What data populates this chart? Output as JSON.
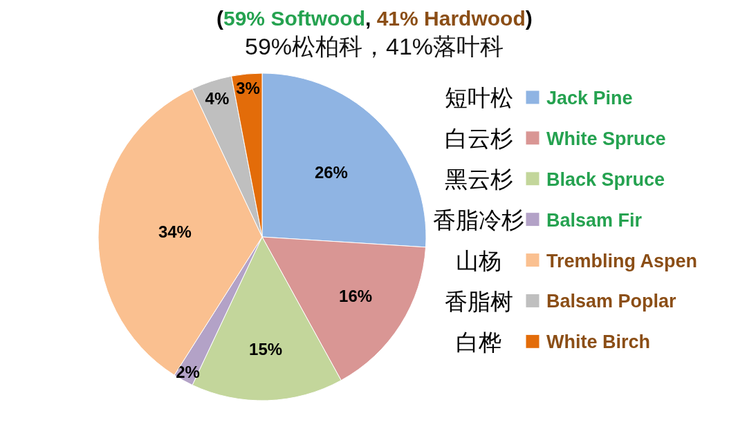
{
  "chart_data": {
    "type": "pie",
    "title": "(59% Softwood, 41% Hardwood)",
    "subtitle": "59%松柏科，41%落叶科",
    "categories": [
      "Jack Pine",
      "White Spruce",
      "Black Spruce",
      "Balsam Fir",
      "Trembling Aspen",
      "Balsam Poplar",
      "White Birch"
    ],
    "values": [
      26,
      16,
      15,
      2,
      34,
      4,
      3
    ],
    "colors": [
      "#8fb4e3",
      "#d99694",
      "#c3d69b",
      "#b3a2c7",
      "#fac090",
      "#bfbfbf",
      "#e36c09"
    ],
    "value_labels": [
      "26%",
      "16%",
      "15%",
      "2%",
      "34%",
      "4%",
      "3%"
    ],
    "annotations": [
      "短叶松",
      "白云杉",
      "黑云杉",
      "香脂冷杉",
      "山杨",
      "香脂树",
      "白桦"
    ],
    "legend": "right"
  }
}
